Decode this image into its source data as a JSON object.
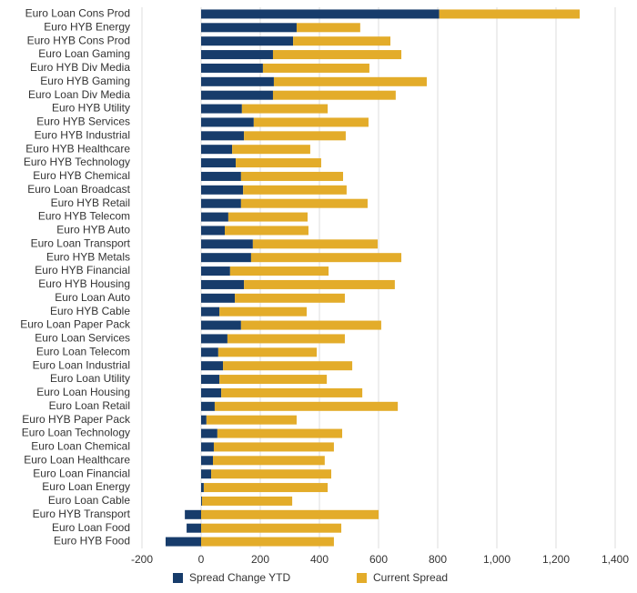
{
  "chart_data": {
    "type": "stacked-barh",
    "categories": [
      "Euro Loan Cons Prod",
      "Euro HYB Energy",
      "Euro HYB Cons Prod",
      "Euro Loan Gaming",
      "Euro HYB Div Media",
      "Euro HYB Gaming",
      "Euro Loan Div Media",
      "Euro HYB Utility",
      "Euro HYB Services",
      "Euro HYB Industrial",
      "Euro HYB Healthcare",
      "Euro HYB Technology",
      "Euro HYB Chemical",
      "Euro Loan Broadcast",
      "Euro HYB Retail",
      "Euro HYB Telecom",
      "Euro HYB Auto",
      "Euro Loan Transport",
      "Euro HYB Metals",
      "Euro HYB Financial",
      "Euro HYB Housing",
      "Euro Loan Auto",
      "Euro HYB Cable",
      "Euro Loan Paper Pack",
      "Euro Loan Services",
      "Euro Loan Telecom",
      "Euro Loan Industrial",
      "Euro Loan Utility",
      "Euro Loan Housing",
      "Euro Loan Retail",
      "Euro HYB Paper Pack",
      "Euro Loan Technology",
      "Euro Loan Chemical",
      "Euro Loan Healthcare",
      "Euro Loan Financial",
      "Euro Loan Energy",
      "Euro Loan Cable",
      "Euro HYB Transport",
      "Euro Loan Food",
      "Euro HYB Food"
    ],
    "series": [
      {
        "name": "Spread Change YTD",
        "color": "#173c6b",
        "values": [
          805,
          323,
          311,
          243,
          209,
          246,
          243,
          138,
          178,
          145,
          105,
          117,
          135,
          142,
          135,
          92,
          80,
          175,
          169,
          98,
          145,
          114,
          62,
          135,
          89,
          58,
          74,
          62,
          68,
          46,
          18,
          55,
          43,
          40,
          34,
          9,
          3,
          -55,
          -49,
          -120
        ]
      },
      {
        "name": "Current Spread",
        "color": "#e3ac2a",
        "values": [
          475,
          215,
          329,
          434,
          360,
          517,
          415,
          290,
          388,
          344,
          264,
          289,
          345,
          350,
          428,
          268,
          283,
          422,
          508,
          333,
          510,
          372,
          295,
          474,
          397,
          333,
          437,
          363,
          477,
          619,
          305,
          422,
          406,
          378,
          406,
          419,
          305,
          600,
          474,
          449
        ]
      }
    ],
    "xlim": [
      -200,
      1400
    ],
    "xticks": [
      -200,
      0,
      200,
      400,
      600,
      800,
      {
        "value": 1000,
        "label": "1,000"
      },
      {
        "value": 1200,
        "label": "1,200"
      },
      {
        "value": 1400,
        "label": "1,400"
      }
    ],
    "grid": true,
    "legend": "bottom"
  }
}
